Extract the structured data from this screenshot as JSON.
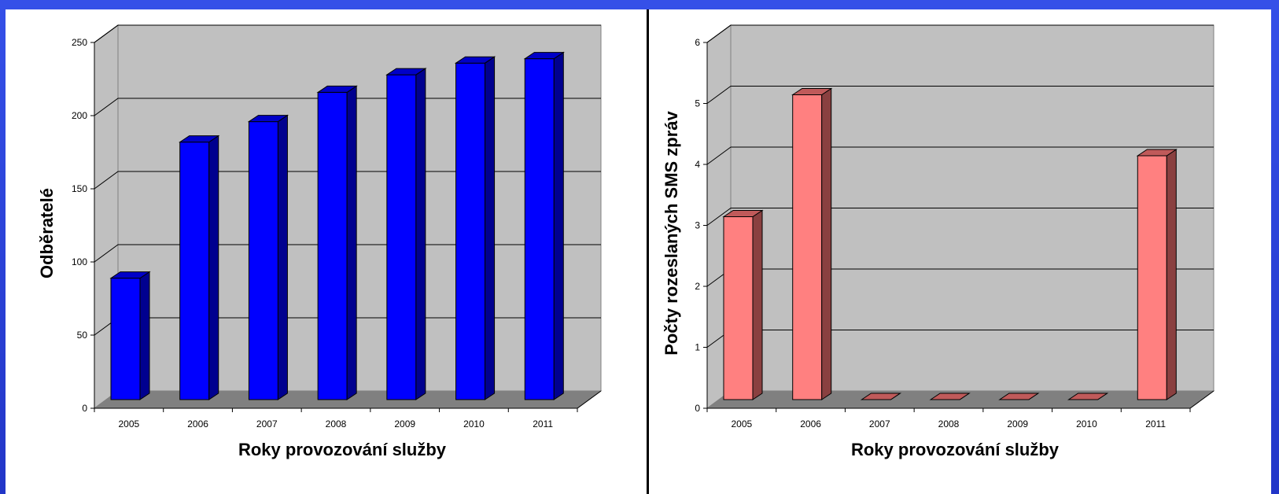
{
  "chart_data": [
    {
      "type": "bar",
      "categories": [
        "2005",
        "2006",
        "2007",
        "2008",
        "2009",
        "2010",
        "2011"
      ],
      "values": [
        83,
        176,
        190,
        210,
        222,
        230,
        233
      ],
      "title": "",
      "xlabel": "Roky provozování služby",
      "ylabel": "Odběratelé",
      "ylim": [
        0,
        250
      ],
      "yticks": [
        0,
        50,
        100,
        150,
        200,
        250
      ],
      "grid": true,
      "colors": {
        "front": "#0000ff",
        "side": "#00008f",
        "top": "#0000c8"
      }
    },
    {
      "type": "bar",
      "categories": [
        "2005",
        "2006",
        "2007",
        "2008",
        "2009",
        "2010",
        "2011"
      ],
      "values": [
        3,
        5,
        0,
        0,
        0,
        0,
        4
      ],
      "title": "",
      "xlabel": "Roky provozování služby",
      "ylabel": "Počty rozeslaných SMS zpráv",
      "ylim": [
        0,
        6
      ],
      "yticks": [
        0,
        1,
        2,
        3,
        4,
        5,
        6
      ],
      "grid": true,
      "colors": {
        "front": "#ff8080",
        "side": "#8a4040",
        "top": "#c05a5a"
      }
    }
  ]
}
